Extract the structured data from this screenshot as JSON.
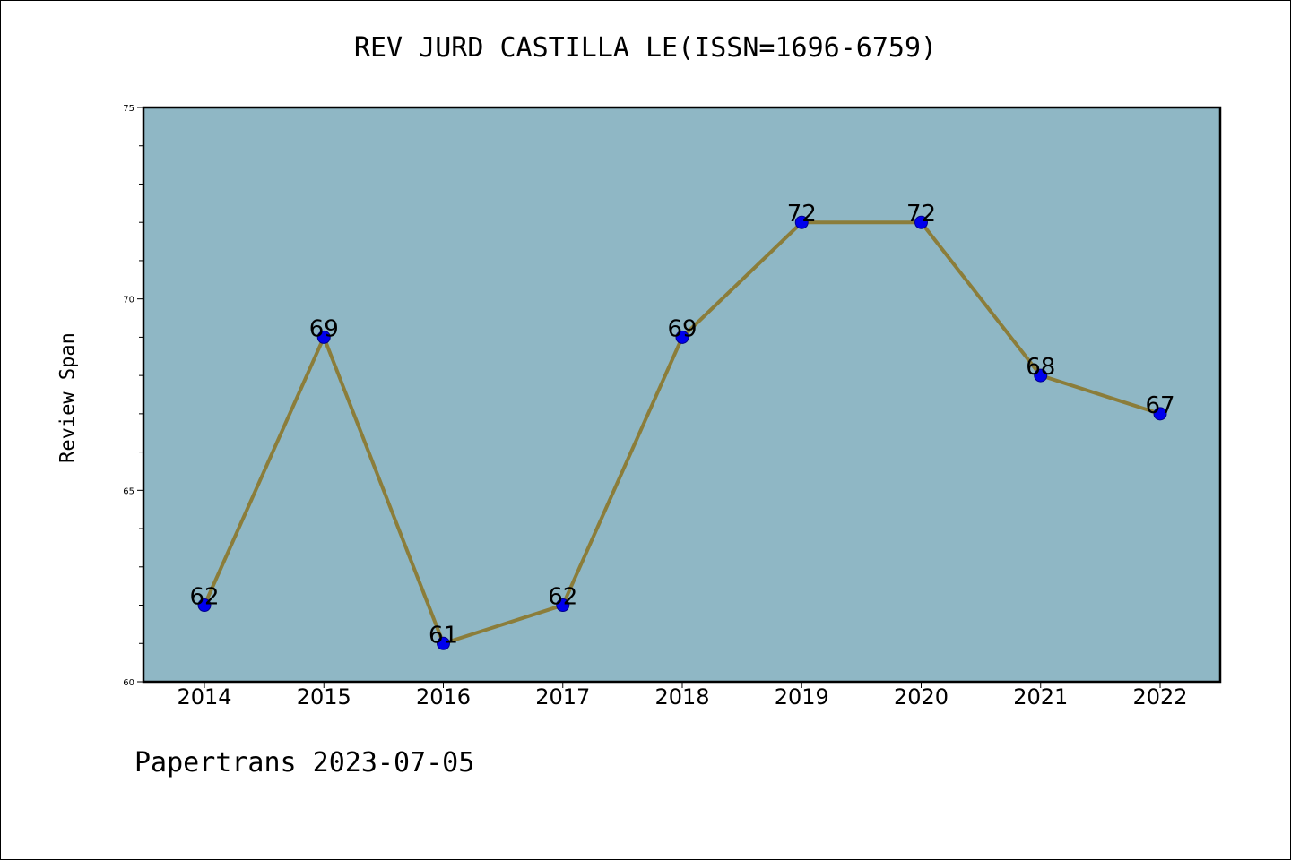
{
  "chart_data": {
    "type": "line",
    "title": "REV JURD CASTILLA LE(ISSN=1696-6759)",
    "xlabel": "",
    "ylabel": "Review Span",
    "categories": [
      "2014",
      "2015",
      "2016",
      "2017",
      "2018",
      "2019",
      "2020",
      "2021",
      "2022"
    ],
    "series": [
      {
        "values": [
          62,
          69,
          61,
          62,
          69,
          72,
          72,
          68,
          67
        ]
      }
    ],
    "data_labels": [
      "62",
      "69",
      "61",
      "62",
      "69",
      "72",
      "72",
      "68",
      "67"
    ],
    "ylim": [
      60,
      75
    ],
    "yticks": [
      "60",
      "65",
      "70",
      "75"
    ],
    "grid": false,
    "colors": {
      "plot_background": "#8fb7c5",
      "line": "#8b7d3a",
      "marker": "#0000ee",
      "marker_edge": "#00008b"
    }
  },
  "footer": "Papertrans 2023-07-05"
}
